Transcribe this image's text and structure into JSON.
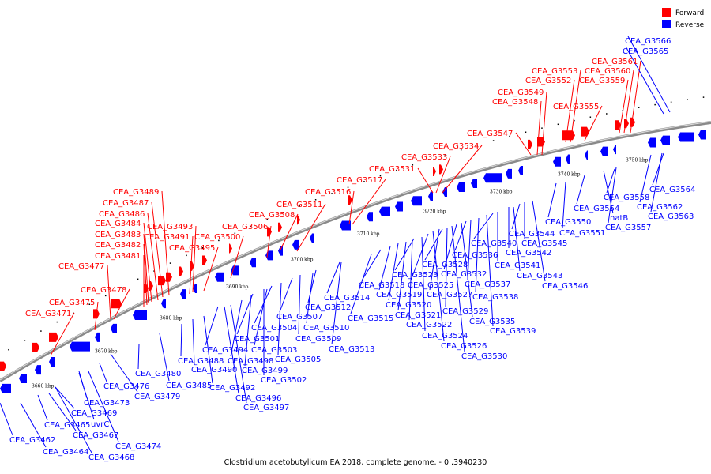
{
  "caption": "Clostridium acetobutylicum EA 2018, complete genome. - 0..3940230",
  "legend": [
    {
      "label": "Forward",
      "color": "#ff0000"
    },
    {
      "label": "Reverse",
      "color": "#0000ff"
    }
  ],
  "colors": {
    "forward": "#ff0000",
    "reverse": "#0000ff",
    "backbone": "#8a8a8a"
  },
  "ticks": [
    "3660 kbp",
    "3670 kbp",
    "3680 kbp",
    "3690 kbp",
    "3700 kbp",
    "3710 kbp",
    "3720 kbp",
    "3730 kbp",
    "3740 kbp",
    "3750 kbp"
  ],
  "forward_labels": [
    "CEA_G3471",
    "CEA_G3475",
    "CEA_G3477",
    "CEA_G3478",
    "CEA_G3481",
    "CEA_G3482",
    "CEA_G3483",
    "CEA_G3484",
    "CEA_G3486",
    "CEA_G3487",
    "CEA_G3489",
    "CEA_G3491",
    "CEA_G3493",
    "CEA_G3495",
    "CEA_G3500",
    "CEA_G3506",
    "CEA_G3508",
    "CEA_G3511",
    "CEA_G3516",
    "CEA_G3517",
    "CEA_G3531",
    "CEA_G3533",
    "CEA_G3534",
    "CEA_G3547",
    "CEA_G3548",
    "CEA_G3549",
    "CEA_G3552",
    "CEA_G3553",
    "CEA_G3555",
    "CEA_G3559",
    "CEA_G3560",
    "CEA_G3561"
  ],
  "reverse_labels": [
    "CEA_G3462",
    "CEA_G3464",
    "CEA_G3465",
    "CEA_G3467",
    "CEA_G3468",
    "CEA_G3469",
    "uvrC",
    "CEA_G3473",
    "CEA_G3474",
    "CEA_G3476",
    "CEA_G3479",
    "CEA_G3480",
    "CEA_G3485",
    "CEA_G3488",
    "CEA_G3490",
    "CEA_G3492",
    "CEA_G3494",
    "CEA_G3496",
    "CEA_G3497",
    "CEA_G3498",
    "CEA_G3499",
    "CEA_G3501",
    "CEA_G3502",
    "CEA_G3503",
    "CEA_G3504",
    "CEA_G3505",
    "CEA_G3507",
    "CEA_G3509",
    "CEA_G3510",
    "CEA_G3512",
    "CEA_G3513",
    "CEA_G3514",
    "CEA_G3515",
    "CEA_G3518",
    "CEA_G3519",
    "CEA_G3520",
    "CEA_G3521",
    "CEA_G3522",
    "CEA_G3523",
    "CEA_G3524",
    "CEA_G3525",
    "CEA_G3526",
    "CEA_G3527",
    "CEA_G3528",
    "CEA_G3529",
    "CEA_G3530",
    "CEA_G3532",
    "CEA_G3535",
    "CEA_G3536",
    "CEA_G3537",
    "CEA_G3538",
    "CEA_G3539",
    "CEA_G3540",
    "CEA_G3541",
    "CEA_G3542",
    "CEA_G3543",
    "CEA_G3544",
    "CEA_G3545",
    "CEA_G3546",
    "CEA_G3550",
    "CEA_G3551",
    "CEA_G3554",
    "natB",
    "CEA_G3557",
    "CEA_G3558",
    "CEA_G3562",
    "CEA_G3563",
    "CEA_G3564",
    "CEA_G3565",
    "CEA_G3566"
  ]
}
